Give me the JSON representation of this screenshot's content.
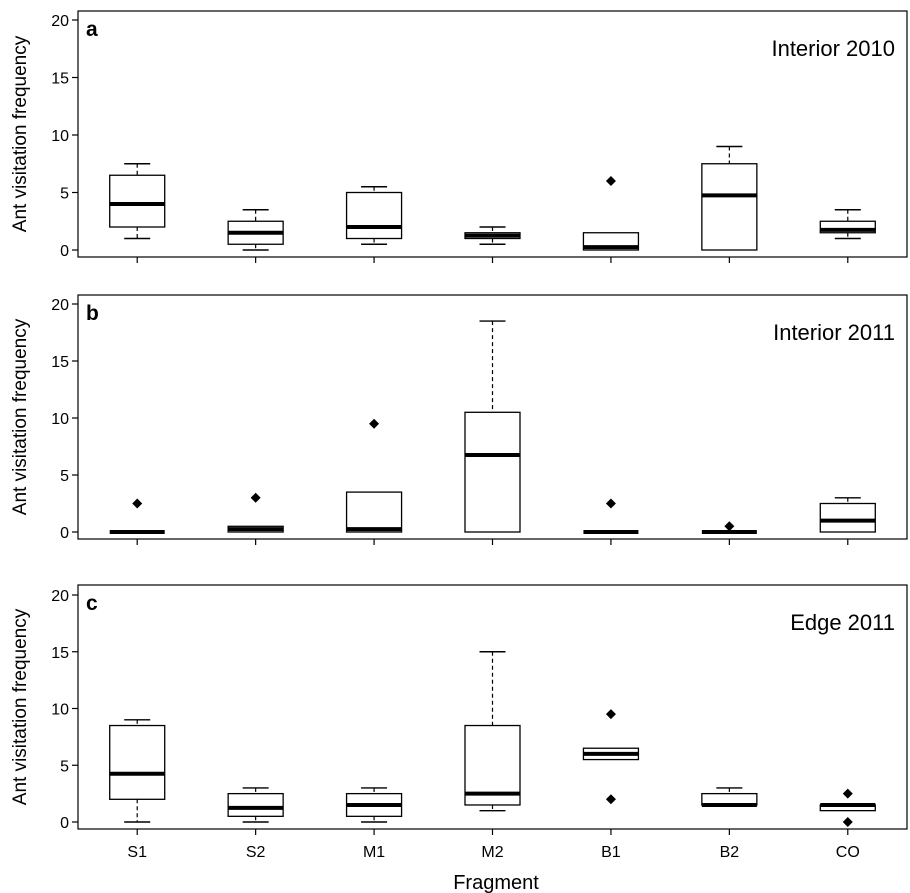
{
  "figure": {
    "xlabel": "Fragment",
    "ylabel": "Ant visitation frequency"
  },
  "chart_data": [
    {
      "type": "box",
      "panel_label": "a",
      "title": "Interior 2010",
      "xlabel": "",
      "ylabel": "Ant visitation frequency",
      "ylim": [
        0,
        20
      ],
      "yticks": [
        0,
        5,
        10,
        15,
        20
      ],
      "categories": [
        "S1",
        "S2",
        "M1",
        "M2",
        "B1",
        "B2",
        "CO"
      ],
      "boxes": [
        {
          "category": "S1",
          "whisker_low": 1,
          "q1": 2,
          "median": 4,
          "q3": 6.5,
          "whisker_high": 7.5,
          "outliers": []
        },
        {
          "category": "S2",
          "whisker_low": 0,
          "q1": 0.5,
          "median": 1.5,
          "q3": 2.5,
          "whisker_high": 3.5,
          "outliers": []
        },
        {
          "category": "M1",
          "whisker_low": 0.5,
          "q1": 1,
          "median": 2,
          "q3": 5,
          "whisker_high": 5.5,
          "outliers": []
        },
        {
          "category": "M2",
          "whisker_low": 0.5,
          "q1": 1,
          "median": 1.25,
          "q3": 1.5,
          "whisker_high": 2,
          "outliers": []
        },
        {
          "category": "B1",
          "whisker_low": 0,
          "q1": 0,
          "median": 0.25,
          "q3": 1.5,
          "whisker_high": 1.5,
          "outliers": [
            6
          ]
        },
        {
          "category": "B2",
          "whisker_low": 0,
          "q1": 0,
          "median": 4.75,
          "q3": 7.5,
          "whisker_high": 9,
          "outliers": []
        },
        {
          "category": "CO",
          "whisker_low": 1,
          "q1": 1.5,
          "median": 1.75,
          "q3": 2.5,
          "whisker_high": 3.5,
          "outliers": []
        }
      ]
    },
    {
      "type": "box",
      "panel_label": "b",
      "title": "Interior 2011",
      "xlabel": "",
      "ylabel": "Ant visitation frequency",
      "ylim": [
        0,
        20
      ],
      "yticks": [
        0,
        5,
        10,
        15,
        20
      ],
      "categories": [
        "S1",
        "S2",
        "M1",
        "M2",
        "B1",
        "B2",
        "CO"
      ],
      "boxes": [
        {
          "category": "S1",
          "whisker_low": 0,
          "q1": 0,
          "median": 0,
          "q3": 0,
          "whisker_high": 0,
          "outliers": [
            2.5
          ]
        },
        {
          "category": "S2",
          "whisker_low": 0,
          "q1": 0,
          "median": 0.25,
          "q3": 0.5,
          "whisker_high": 0.5,
          "outliers": [
            3
          ]
        },
        {
          "category": "M1",
          "whisker_low": 0,
          "q1": 0,
          "median": 0.25,
          "q3": 3.5,
          "whisker_high": 3.5,
          "outliers": [
            9.5
          ]
        },
        {
          "category": "M2",
          "whisker_low": 0,
          "q1": 0,
          "median": 6.75,
          "q3": 10.5,
          "whisker_high": 18.5,
          "outliers": []
        },
        {
          "category": "B1",
          "whisker_low": 0,
          "q1": 0,
          "median": 0,
          "q3": 0,
          "whisker_high": 0,
          "outliers": [
            2.5
          ]
        },
        {
          "category": "B2",
          "whisker_low": 0,
          "q1": 0,
          "median": 0,
          "q3": 0,
          "whisker_high": 0,
          "outliers": [
            0.5
          ]
        },
        {
          "category": "CO",
          "whisker_low": 0,
          "q1": 0,
          "median": 1,
          "q3": 2.5,
          "whisker_high": 3,
          "outliers": []
        }
      ]
    },
    {
      "type": "box",
      "panel_label": "c",
      "title": "Edge 2011",
      "xlabel": "Fragment",
      "ylabel": "Ant visitation frequency",
      "ylim": [
        0,
        20
      ],
      "yticks": [
        0,
        5,
        10,
        15,
        20
      ],
      "categories": [
        "S1",
        "S2",
        "M1",
        "M2",
        "B1",
        "B2",
        "CO"
      ],
      "boxes": [
        {
          "category": "S1",
          "whisker_low": 0,
          "q1": 2,
          "median": 4.25,
          "q3": 8.5,
          "whisker_high": 9,
          "outliers": []
        },
        {
          "category": "S2",
          "whisker_low": 0,
          "q1": 0.5,
          "median": 1.25,
          "q3": 2.5,
          "whisker_high": 3,
          "outliers": []
        },
        {
          "category": "M1",
          "whisker_low": 0,
          "q1": 0.5,
          "median": 1.5,
          "q3": 2.5,
          "whisker_high": 3,
          "outliers": []
        },
        {
          "category": "M2",
          "whisker_low": 1,
          "q1": 1.5,
          "median": 2.5,
          "q3": 8.5,
          "whisker_high": 15,
          "outliers": []
        },
        {
          "category": "B1",
          "whisker_low": 5.5,
          "q1": 5.5,
          "median": 6,
          "q3": 6.5,
          "whisker_high": 6.5,
          "outliers": [
            2,
            9.5
          ]
        },
        {
          "category": "B2",
          "whisker_low": 1.5,
          "q1": 1.5,
          "median": 1.5,
          "q3": 2.5,
          "whisker_high": 3,
          "outliers": []
        },
        {
          "category": "CO",
          "whisker_low": 1,
          "q1": 1,
          "median": 1.5,
          "q3": 1.5,
          "whisker_high": 1.5,
          "outliers": [
            0,
            2.5
          ]
        }
      ]
    }
  ]
}
